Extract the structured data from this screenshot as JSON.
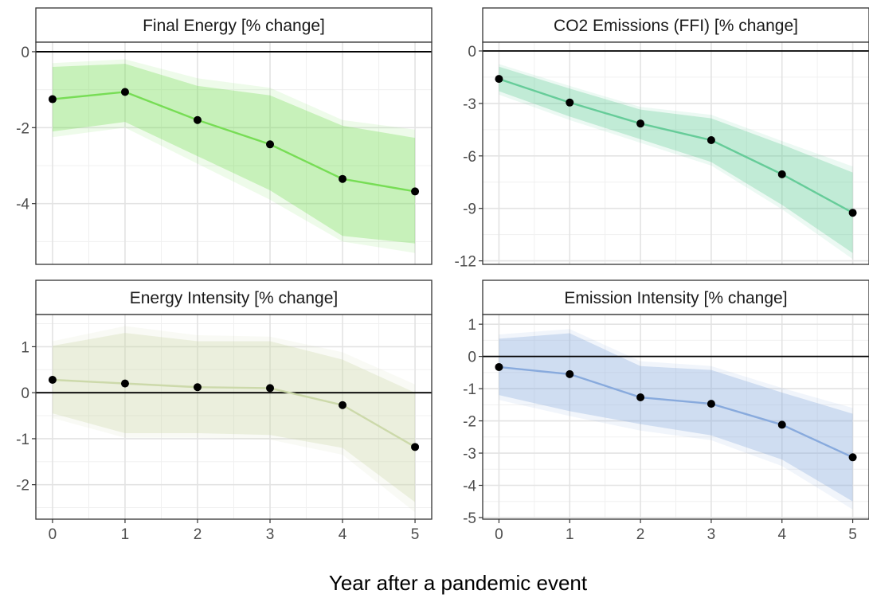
{
  "xlabel": "Year after a pandemic event",
  "chart_data": [
    {
      "type": "line",
      "title": "Final Energy [% change]",
      "x": [
        0,
        1,
        2,
        3,
        4,
        5
      ],
      "xticks": [
        "0",
        "1",
        "2",
        "3",
        "4",
        "5"
      ],
      "ylim": [
        -5.6,
        0.25
      ],
      "yticks": [
        0,
        -2,
        -4
      ],
      "ytick_labels": [
        "0",
        "-2",
        "-4"
      ],
      "zero_line": true,
      "color": "#77dd55",
      "series": [
        {
          "values": [
            -1.25,
            -1.06,
            -1.8,
            -2.44,
            -3.35,
            -3.68
          ]
        }
      ],
      "band_inner": {
        "lower": [
          -2.1,
          -1.85,
          -2.75,
          -3.65,
          -4.85,
          -5.05
        ],
        "upper": [
          -0.4,
          -0.32,
          -0.9,
          -1.15,
          -1.95,
          -2.27
        ]
      },
      "band_outer": {
        "lower": [
          -2.25,
          -2.0,
          -2.95,
          -3.9,
          -5.0,
          -5.3
        ],
        "upper": [
          -0.3,
          -0.2,
          -0.7,
          -0.95,
          -1.8,
          -2.05
        ]
      }
    },
    {
      "type": "line",
      "title": "CO2 Emissions (FFI) [% change]",
      "x": [
        0,
        1,
        2,
        3,
        4,
        5
      ],
      "xticks": [
        "0",
        "1",
        "2",
        "3",
        "4",
        "5"
      ],
      "ylim": [
        -12.2,
        0.5
      ],
      "yticks": [
        0,
        -3,
        -6,
        -9,
        -12
      ],
      "ytick_labels": [
        "0",
        "-3",
        "-6",
        "-9",
        "-12"
      ],
      "zero_line": true,
      "color": "#66cc99",
      "series": [
        {
          "values": [
            -1.6,
            -2.95,
            -4.15,
            -5.1,
            -7.05,
            -9.25
          ]
        }
      ],
      "band_inner": {
        "lower": [
          -2.3,
          -3.75,
          -5.05,
          -6.35,
          -8.8,
          -11.55
        ],
        "upper": [
          -0.9,
          -2.15,
          -3.35,
          -3.85,
          -5.35,
          -6.95
        ]
      },
      "band_outer": {
        "lower": [
          -2.5,
          -3.95,
          -5.25,
          -6.55,
          -9.05,
          -11.9
        ],
        "upper": [
          -0.75,
          -2.0,
          -3.2,
          -3.65,
          -5.15,
          -6.6
        ]
      }
    },
    {
      "type": "line",
      "title": "Energy Intensity [% change]",
      "x": [
        0,
        1,
        2,
        3,
        4,
        5
      ],
      "xticks": [
        "0",
        "1",
        "2",
        "3",
        "4",
        "5"
      ],
      "ylim": [
        -2.75,
        1.7
      ],
      "yticks": [
        1,
        0,
        -1,
        -2
      ],
      "ytick_labels": [
        "1",
        "0",
        "-1",
        "-2"
      ],
      "zero_line": true,
      "color": "#ccd9aa",
      "series": [
        {
          "values": [
            0.28,
            0.2,
            0.12,
            0.1,
            -0.27,
            -1.18
          ]
        }
      ],
      "band_inner": {
        "lower": [
          -0.45,
          -0.88,
          -0.88,
          -0.92,
          -1.2,
          -2.38
        ],
        "upper": [
          1.02,
          1.3,
          1.12,
          1.12,
          0.72,
          0.0
        ]
      },
      "band_outer": {
        "lower": [
          -0.55,
          -0.98,
          -0.98,
          -1.02,
          -1.35,
          -2.6
        ],
        "upper": [
          1.12,
          1.45,
          1.25,
          1.22,
          0.88,
          0.18
        ]
      }
    },
    {
      "type": "line",
      "title": "Emission Intensity [% change]",
      "x": [
        0,
        1,
        2,
        3,
        4,
        5
      ],
      "xticks": [
        "0",
        "1",
        "2",
        "3",
        "4",
        "5"
      ],
      "ylim": [
        -5.05,
        1.3
      ],
      "yticks": [
        1,
        0,
        -1,
        -2,
        -3,
        -4,
        -5
      ],
      "ytick_labels": [
        "1",
        "0",
        "-1",
        "-2",
        "-3",
        "-4",
        "-5"
      ],
      "zero_line": true,
      "color": "#88aadd",
      "series": [
        {
          "values": [
            -0.33,
            -0.55,
            -1.27,
            -1.47,
            -2.12,
            -3.13
          ]
        }
      ],
      "band_inner": {
        "lower": [
          -1.2,
          -1.7,
          -2.1,
          -2.45,
          -3.2,
          -4.5
        ],
        "upper": [
          0.55,
          0.72,
          -0.3,
          -0.42,
          -1.12,
          -1.78
        ]
      },
      "band_outer": {
        "lower": [
          -1.35,
          -1.85,
          -2.3,
          -2.6,
          -3.4,
          -4.75
        ],
        "upper": [
          0.68,
          0.85,
          -0.15,
          -0.3,
          -0.98,
          -1.6
        ]
      }
    }
  ]
}
